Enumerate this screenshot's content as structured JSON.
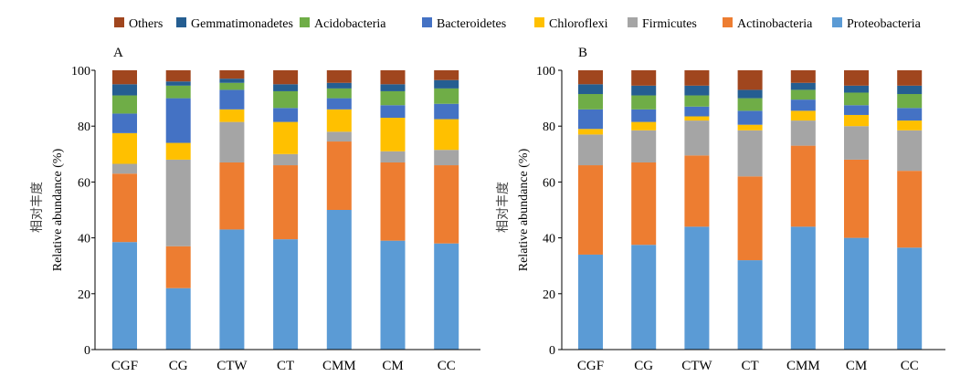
{
  "legend": [
    {
      "label": "Others",
      "color": "#A0461E"
    },
    {
      "label": "Gemmatimonadetes",
      "color": "#255E91"
    },
    {
      "label": "Acidobacteria",
      "color": "#6FAD47"
    },
    {
      "label": "Bacteroidetes",
      "color": "#4472C4"
    },
    {
      "label": "Chloroflexi",
      "color": "#FFC000"
    },
    {
      "label": "Firmicutes",
      "color": "#A5A5A5"
    },
    {
      "label": "Actinobacteria",
      "color": "#ED7D31"
    },
    {
      "label": "Proteobacteria",
      "color": "#5B9BD5"
    }
  ],
  "chart_data": [
    {
      "type": "bar",
      "stacked": true,
      "panel_label": "A",
      "categories": [
        "CGF",
        "CG",
        "CTW",
        "CT",
        "CMM",
        "CM",
        "CC"
      ],
      "ylabel_cn": "相对丰度",
      "ylabel": "Relative abundance (%)",
      "ylim": [
        0,
        100
      ],
      "yticks": [
        0,
        20,
        40,
        60,
        80,
        100
      ],
      "series": [
        {
          "name": "Proteobacteria",
          "values": [
            38.5,
            22,
            43,
            39.5,
            50,
            39,
            38
          ]
        },
        {
          "name": "Actinobacteria",
          "values": [
            24.5,
            15,
            24,
            26.5,
            24.5,
            28,
            28
          ]
        },
        {
          "name": "Firmicutes",
          "values": [
            3.5,
            31,
            14.5,
            4,
            3.5,
            4,
            5.5
          ]
        },
        {
          "name": "Chloroflexi",
          "values": [
            11,
            6,
            4.5,
            11.5,
            8,
            12,
            11
          ]
        },
        {
          "name": "Bacteroidetes",
          "values": [
            7,
            16,
            7,
            5,
            4,
            4.5,
            5.5
          ]
        },
        {
          "name": "Acidobacteria",
          "values": [
            6.5,
            4.5,
            2.5,
            6,
            3.5,
            5,
            5.5
          ]
        },
        {
          "name": "Gemmatimonadetes",
          "values": [
            4,
            1.5,
            1.5,
            2.5,
            2,
            2.5,
            3
          ]
        },
        {
          "name": "Others",
          "values": [
            5,
            4,
            3,
            5,
            4.5,
            5,
            3.5
          ]
        }
      ]
    },
    {
      "type": "bar",
      "stacked": true,
      "panel_label": "B",
      "categories": [
        "CGF",
        "CG",
        "CTW",
        "CT",
        "CMM",
        "CM",
        "CC"
      ],
      "ylabel_cn": "相对丰度",
      "ylabel": "Relative abundance (%)",
      "ylim": [
        0,
        100
      ],
      "yticks": [
        0,
        20,
        40,
        60,
        80,
        100
      ],
      "series": [
        {
          "name": "Proteobacteria",
          "values": [
            34,
            37.5,
            44,
            32,
            44,
            40,
            36.5
          ]
        },
        {
          "name": "Actinobacteria",
          "values": [
            32,
            29.5,
            25.5,
            30,
            29,
            28,
            27.5
          ]
        },
        {
          "name": "Firmicutes",
          "values": [
            11,
            11.5,
            12.5,
            16.5,
            9,
            12,
            14.5
          ]
        },
        {
          "name": "Chloroflexi",
          "values": [
            2,
            3,
            1.5,
            2,
            3.5,
            4,
            3.5
          ]
        },
        {
          "name": "Bacteroidetes",
          "values": [
            7,
            4.5,
            3.5,
            5,
            4,
            3.5,
            4.5
          ]
        },
        {
          "name": "Acidobacteria",
          "values": [
            5.5,
            5,
            4,
            4.5,
            3.5,
            4.5,
            5
          ]
        },
        {
          "name": "Gemmatimonadetes",
          "values": [
            3.5,
            3.5,
            3.5,
            3,
            2.5,
            2.5,
            3
          ]
        },
        {
          "name": "Others",
          "values": [
            5,
            5.5,
            5.5,
            7,
            4.5,
            5.5,
            5.5
          ]
        }
      ]
    }
  ]
}
